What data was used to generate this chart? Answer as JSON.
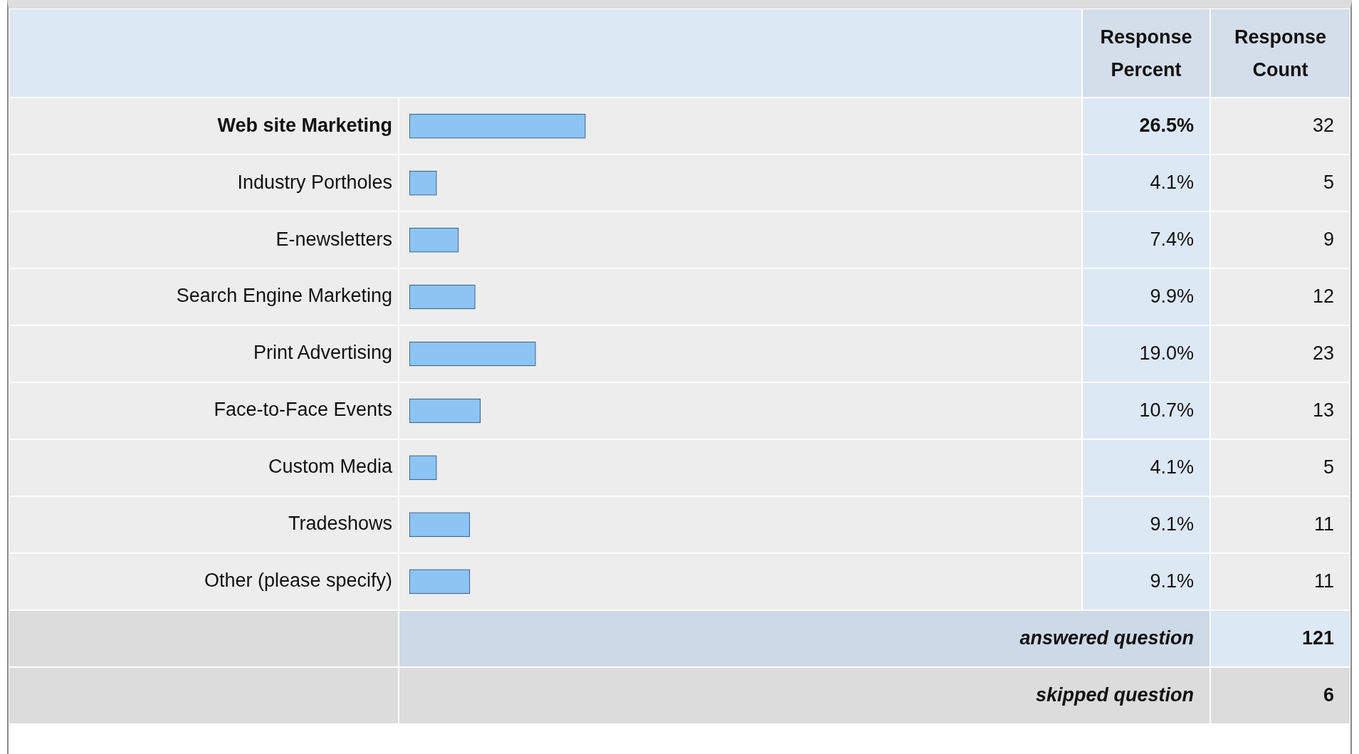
{
  "chart_data": {
    "type": "bar",
    "orientation": "horizontal",
    "categories": [
      "Web site Marketing",
      "Industry Portholes",
      "E-newsletters",
      "Search Engine Marketing",
      "Print Advertising",
      "Face-to-Face Events",
      "Custom Media",
      "Tradeshows",
      "Other (please specify)"
    ],
    "values": [
      26.5,
      4.1,
      7.4,
      9.9,
      19.0,
      10.7,
      4.1,
      9.1,
      9.1
    ],
    "value_labels": [
      "26.5%",
      "4.1%",
      "7.4%",
      "9.9%",
      "19.0%",
      "10.7%",
      "4.1%",
      "9.1%",
      "9.1%"
    ],
    "color": "#8cc4f4",
    "tick_labels": "y",
    "annotations": [
      "Response Percent",
      "Response Count",
      "answered question",
      "121",
      "skipped question",
      "6",
      "32",
      "5",
      "9",
      "12",
      "23",
      "13",
      "5",
      "11",
      "11"
    ]
  }
}
